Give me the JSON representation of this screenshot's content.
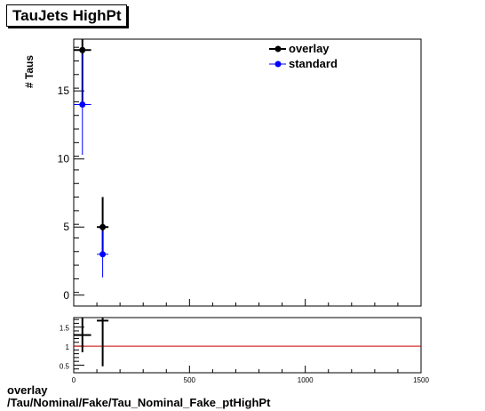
{
  "title": "TauJets HighPt",
  "footer": {
    "line1": "overlay",
    "line2": "/Tau/Nominal/Fake/Tau_Nominal_Fake_ptHighPt"
  },
  "colors": {
    "overlay": "#000000",
    "standard": "#0000ff",
    "ratio_line": "#cc0000"
  },
  "chart_data": [
    {
      "type": "scatter",
      "title": "TauJets HighPt",
      "xlabel": "",
      "ylabel": "# Taus",
      "xlim": [
        0,
        1500
      ],
      "ylim": [
        -0.8,
        18.8
      ],
      "x_ticks": [
        0,
        500,
        1000,
        1500
      ],
      "y_ticks": [
        0,
        5,
        10,
        15
      ],
      "legend": "top-right",
      "series": [
        {
          "name": "overlay",
          "color": "#000000",
          "points": [
            {
              "x": 37.5,
              "xerr": 37.5,
              "y": 18,
              "yerr": 4.2
            },
            {
              "x": 125,
              "xerr": 25,
              "y": 5,
              "yerr": 2.2
            }
          ]
        },
        {
          "name": "standard",
          "color": "#0000ff",
          "points": [
            {
              "x": 37.5,
              "xerr": 37.5,
              "y": 14,
              "yerr": 3.7
            },
            {
              "x": 125,
              "xerr": 25,
              "y": 3,
              "yerr": 1.7
            }
          ]
        }
      ]
    },
    {
      "type": "scatter",
      "xlim": [
        0,
        1500
      ],
      "ylim": [
        0.3,
        1.75
      ],
      "y_ticks": [
        0.5,
        1,
        1.5
      ],
      "x_ticks": [
        0,
        500,
        1000,
        1500
      ],
      "reference_line": 1,
      "series": [
        {
          "name": "ratio",
          "color": "#000000",
          "points": [
            {
              "x": 37.5,
              "xerr": 37.5,
              "y": 1.29,
              "yerr": 0.45
            },
            {
              "x": 125,
              "xerr": 25,
              "y": 1.67,
              "yerr": 1.2
            }
          ]
        }
      ]
    }
  ]
}
